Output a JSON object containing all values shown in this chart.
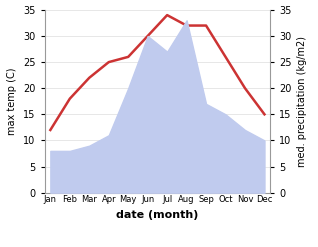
{
  "months": [
    "Jan",
    "Feb",
    "Mar",
    "Apr",
    "May",
    "Jun",
    "Jul",
    "Aug",
    "Sep",
    "Oct",
    "Nov",
    "Dec"
  ],
  "temp": [
    12,
    18,
    22,
    25,
    26,
    30,
    34,
    32,
    32,
    26,
    20,
    15
  ],
  "precip": [
    8,
    8,
    9,
    11,
    20,
    30,
    27,
    33,
    17,
    15,
    12,
    10
  ],
  "temp_color": "#cc3333",
  "precip_color": "#c0cbee",
  "xlabel": "date (month)",
  "ylabel_left": "max temp (C)",
  "ylabel_right": "med. precipitation (kg/m2)",
  "ylim": [
    0,
    35
  ],
  "yticks": [
    0,
    5,
    10,
    15,
    20,
    25,
    30,
    35
  ],
  "bg_color": "#ffffff",
  "spine_color": "#999999",
  "grid_color": "#dddddd"
}
